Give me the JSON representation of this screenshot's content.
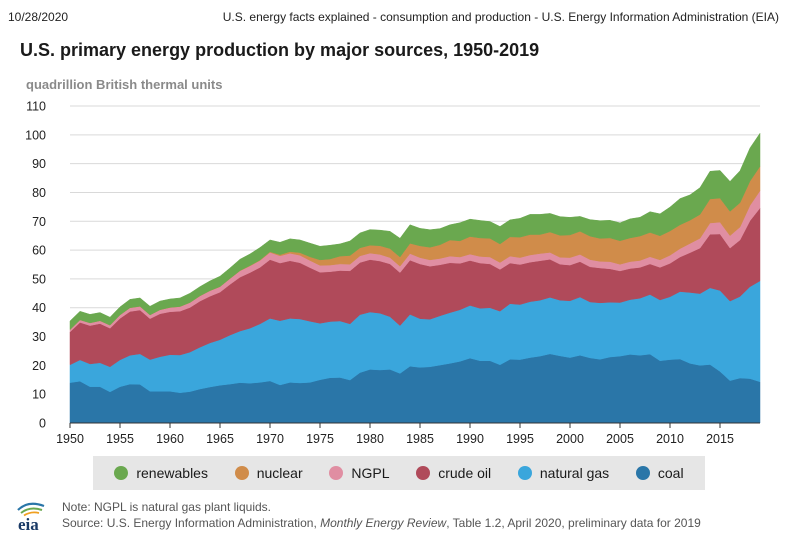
{
  "header": {
    "date": "10/28/2020",
    "source": "U.S. energy facts explained - consumption and production - U.S. Energy Information Administration (EIA)"
  },
  "footer": {
    "logo_text": "eia",
    "note": "Note: NGPL is natural gas plant liquids.",
    "source_prefix": "Source: U.S. Energy Information Administration, ",
    "source_italic": "Monthly Energy Review",
    "source_suffix": ", Table 1.2, April 2020, preliminary data for 2019"
  },
  "chart_data": {
    "type": "area",
    "stacked": true,
    "title": "U.S. primary energy production by major sources, 1950-2019",
    "ylabel": "quadrillion British thermal units",
    "xlim": [
      1950,
      2019
    ],
    "ylim": [
      0,
      110
    ],
    "yticks": [
      0,
      10,
      20,
      30,
      40,
      50,
      60,
      70,
      80,
      90,
      100,
      110
    ],
    "xticks": [
      1950,
      1955,
      1960,
      1965,
      1970,
      1975,
      1980,
      1985,
      1990,
      1995,
      2000,
      2005,
      2010,
      2015
    ],
    "grid": true,
    "legend": "bottom",
    "x": [
      1950,
      1951,
      1952,
      1953,
      1954,
      1955,
      1956,
      1957,
      1958,
      1959,
      1960,
      1961,
      1962,
      1963,
      1964,
      1965,
      1966,
      1967,
      1968,
      1969,
      1970,
      1971,
      1972,
      1973,
      1974,
      1975,
      1976,
      1977,
      1978,
      1979,
      1980,
      1981,
      1982,
      1983,
      1984,
      1985,
      1986,
      1987,
      1988,
      1989,
      1990,
      1991,
      1992,
      1993,
      1994,
      1995,
      1996,
      1997,
      1998,
      1999,
      2000,
      2001,
      2002,
      2003,
      2004,
      2005,
      2006,
      2007,
      2008,
      2009,
      2010,
      2011,
      2012,
      2013,
      2014,
      2015,
      2016,
      2017,
      2018,
      2019
    ],
    "series": [
      {
        "name": "coal",
        "color": "#2a76a8",
        "values": [
          14.0,
          14.5,
          12.6,
          12.6,
          10.8,
          12.6,
          13.5,
          13.4,
          11.0,
          11.0,
          11.0,
          10.5,
          10.9,
          11.8,
          12.5,
          13.1,
          13.5,
          14.0,
          13.8,
          14.1,
          14.6,
          13.2,
          14.1,
          13.9,
          14.1,
          15.0,
          15.7,
          15.8,
          14.9,
          17.5,
          18.6,
          18.4,
          18.6,
          17.2,
          19.7,
          19.3,
          19.5,
          20.1,
          20.7,
          21.4,
          22.5,
          21.6,
          21.6,
          20.2,
          22.1,
          22.0,
          22.7,
          23.2,
          24.0,
          23.3,
          22.7,
          23.5,
          22.6,
          22.1,
          22.9,
          23.2,
          23.8,
          23.5,
          23.9,
          21.6,
          22.0,
          22.2,
          20.7,
          20.0,
          20.3,
          17.9,
          14.7,
          15.6,
          15.4,
          14.3
        ]
      },
      {
        "name": "natural gas",
        "color": "#3aa6dc",
        "values": [
          6.2,
          7.4,
          7.9,
          8.3,
          8.7,
          9.3,
          10.0,
          10.6,
          11.0,
          12.0,
          12.7,
          13.1,
          13.7,
          14.5,
          15.3,
          15.8,
          17.0,
          17.9,
          19.1,
          20.3,
          21.7,
          22.3,
          22.2,
          22.2,
          21.2,
          19.6,
          19.5,
          19.6,
          19.5,
          20.1,
          19.9,
          19.7,
          18.3,
          16.6,
          18.0,
          16.9,
          16.5,
          17.1,
          17.6,
          17.9,
          18.3,
          18.2,
          18.4,
          18.6,
          19.3,
          19.1,
          19.4,
          19.4,
          19.6,
          19.3,
          19.7,
          20.2,
          19.4,
          19.6,
          19.0,
          18.6,
          19.0,
          19.8,
          20.7,
          21.1,
          21.8,
          23.4,
          24.6,
          24.9,
          26.6,
          28.1,
          27.6,
          28.3,
          31.9,
          35.0
        ]
      },
      {
        "name": "crude oil",
        "color": "#b04a5a",
        "values": [
          11.4,
          13.0,
          13.3,
          13.6,
          13.4,
          14.4,
          15.2,
          15.2,
          14.2,
          14.9,
          14.9,
          15.2,
          15.5,
          16.0,
          16.2,
          16.5,
          17.6,
          18.7,
          19.3,
          19.6,
          20.4,
          20.0,
          20.0,
          19.5,
          18.6,
          17.7,
          17.3,
          17.5,
          18.4,
          18.1,
          18.2,
          18.1,
          18.3,
          18.4,
          18.8,
          18.99,
          18.4,
          17.7,
          17.3,
          16.1,
          15.6,
          15.7,
          15.2,
          14.5,
          14.1,
          13.9,
          13.7,
          13.7,
          13.2,
          12.5,
          12.4,
          12.3,
          12.2,
          12.1,
          11.6,
          10.97,
          10.8,
          10.7,
          10.6,
          11.3,
          11.6,
          12.0,
          13.8,
          15.8,
          18.6,
          19.6,
          18.4,
          19.6,
          22.9,
          25.3
        ]
      },
      {
        "name": "NGPL",
        "color": "#e08ea2",
        "values": [
          0.8,
          0.9,
          0.95,
          1.0,
          1.05,
          1.2,
          1.3,
          1.3,
          1.3,
          1.4,
          1.5,
          1.6,
          1.7,
          1.8,
          1.9,
          1.9,
          2.0,
          2.2,
          2.3,
          2.4,
          2.5,
          2.5,
          2.6,
          2.6,
          2.5,
          2.4,
          2.3,
          2.3,
          2.3,
          2.3,
          2.25,
          2.3,
          2.2,
          2.2,
          2.3,
          2.2,
          2.2,
          2.2,
          2.3,
          2.2,
          2.2,
          2.3,
          2.4,
          2.4,
          2.4,
          2.4,
          2.5,
          2.5,
          2.4,
          2.4,
          2.6,
          2.5,
          2.5,
          2.3,
          2.5,
          2.3,
          2.4,
          2.4,
          2.5,
          2.6,
          2.8,
          2.9,
          3.2,
          3.4,
          3.9,
          4.1,
          4.3,
          4.5,
          5.3,
          6.0
        ]
      },
      {
        "name": "nuclear",
        "color": "#d08c4a",
        "values": [
          0,
          0,
          0,
          0,
          0,
          0,
          0,
          0,
          0.002,
          0.002,
          0.006,
          0.02,
          0.03,
          0.04,
          0.04,
          0.04,
          0.06,
          0.09,
          0.14,
          0.15,
          0.24,
          0.41,
          0.58,
          0.91,
          1.27,
          1.9,
          2.11,
          2.7,
          3.02,
          2.78,
          2.74,
          3.01,
          3.13,
          3.2,
          3.55,
          4.08,
          4.38,
          4.75,
          5.59,
          5.6,
          6.1,
          6.42,
          6.48,
          6.41,
          6.69,
          7.08,
          7.09,
          6.6,
          7.07,
          7.61,
          7.86,
          8.03,
          8.14,
          7.96,
          8.22,
          8.16,
          8.21,
          8.46,
          8.43,
          8.36,
          8.43,
          8.27,
          8.06,
          8.27,
          8.34,
          8.34,
          8.43,
          8.42,
          8.44,
          8.46
        ]
      },
      {
        "name": "renewables",
        "color": "#6aa84f",
        "values": [
          2.98,
          2.96,
          2.94,
          2.83,
          2.75,
          2.78,
          2.9,
          2.9,
          3.0,
          3.0,
          2.93,
          2.97,
          3.19,
          3.19,
          3.37,
          3.59,
          3.63,
          3.93,
          4.02,
          4.34,
          4.08,
          4.29,
          4.43,
          4.41,
          4.74,
          4.73,
          4.77,
          4.25,
          5.04,
          5.17,
          5.43,
          5.41,
          5.98,
          6.5,
          6.44,
          6.08,
          6.1,
          5.6,
          5.3,
          6.3,
          6.04,
          6.07,
          5.82,
          6.08,
          5.9,
          6.54,
          7.0,
          6.99,
          6.46,
          6.5,
          6.1,
          5.16,
          5.73,
          6.15,
          6.12,
          6.23,
          6.62,
          6.52,
          7.19,
          7.62,
          8.3,
          9.1,
          8.8,
          9.3,
          9.6,
          9.6,
          10.4,
          11.1,
          11.5,
          11.5
        ]
      }
    ]
  }
}
